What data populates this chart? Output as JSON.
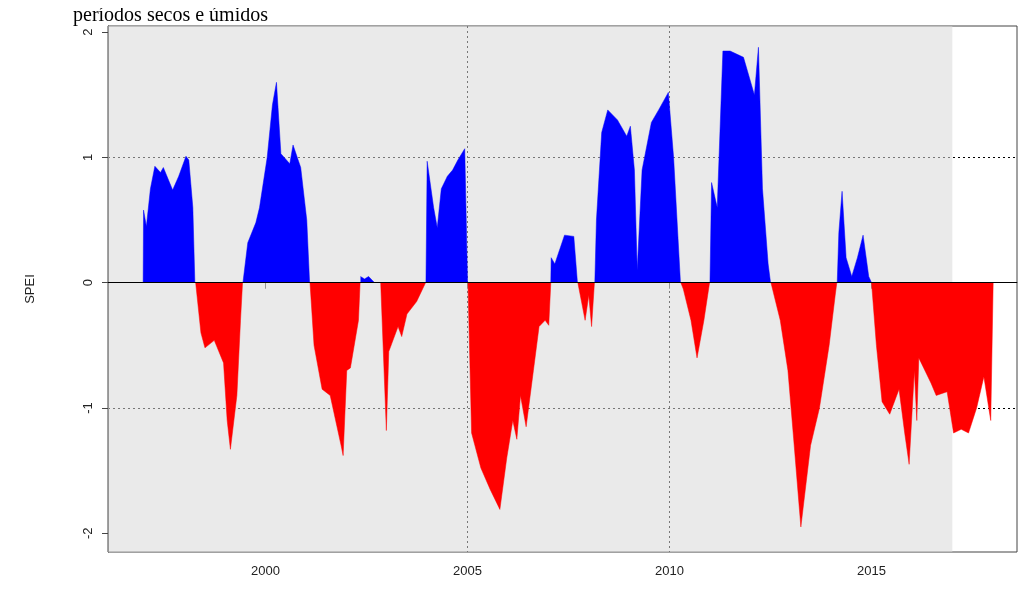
{
  "chart_data": {
    "type": "area",
    "title": "períodos secos e úmidos",
    "ylabel": "SPEI",
    "xlim": [
      1996.1,
      2018.6
    ],
    "ylim": [
      -2.15,
      2.05
    ],
    "xticks": [
      2000,
      2005,
      2010,
      2015
    ],
    "yticks": [
      -2,
      -1,
      0,
      1,
      2
    ],
    "grid": true,
    "bands": [
      {
        "axis": "x",
        "from": 1996.1,
        "to": 2017,
        "color": "#d9d9d9"
      }
    ],
    "ref_lines": [
      {
        "axis": "y",
        "value": 0,
        "color": "#000000"
      }
    ],
    "series": [
      {
        "color": "#0000ff",
        "x": [
          1996.97,
          1996.98,
          1997.05,
          1997.15,
          1997.26,
          1997.4,
          1997.47,
          1997.7,
          1997.85,
          1998.03,
          1998.1,
          1998.2,
          1998.25,
          1998.26,
          1999.44,
          1999.56,
          1999.76,
          1999.85,
          2000.04,
          2000.17,
          2000.27,
          2000.38,
          2000.6,
          2000.68,
          2000.87,
          2001.02,
          2001.09,
          2001.1,
          2002.35,
          2002.45,
          2002.55,
          2002.7,
          2002.71,
          2003.97,
          2004.0,
          2004.16,
          2004.25,
          2004.35,
          2004.5,
          2004.63,
          2004.76,
          2004.93,
          2005.0,
          2005.01,
          2007.06,
          2007.07,
          2007.16,
          2007.4,
          2007.63,
          2007.72,
          2007.73,
          2008.15,
          2008.19,
          2008.32,
          2008.47,
          2008.71,
          2008.94,
          2009.03,
          2009.13,
          2009.2,
          2009.32,
          2009.55,
          2009.73,
          2009.97,
          2010.1,
          2010.27,
          2010.28,
          2011.0,
          2011.04,
          2011.18,
          2011.32,
          2011.5,
          2011.83,
          2012.1,
          2012.2,
          2012.3,
          2012.44,
          2012.5,
          2012.51,
          2014.15,
          2014.19,
          2014.27,
          2014.37,
          2014.51,
          2014.65,
          2014.79,
          2014.93,
          2015.0
        ],
        "values": [
          0,
          0.58,
          0.45,
          0.75,
          0.93,
          0.88,
          0.92,
          0.74,
          0.85,
          1.01,
          0.98,
          0.6,
          0,
          null,
          0,
          0.32,
          0.48,
          0.6,
          1.0,
          1.42,
          1.6,
          1.03,
          0.95,
          1.1,
          0.92,
          0.5,
          0,
          null,
          0.05,
          0.03,
          0.05,
          0,
          null,
          0,
          0.97,
          0.6,
          0.44,
          0.75,
          0.85,
          0.9,
          0.98,
          1.07,
          0,
          null,
          0,
          0.2,
          0.15,
          0.38,
          0.37,
          0,
          null,
          0,
          0.5,
          1.2,
          1.38,
          1.3,
          1.17,
          1.25,
          0.9,
          0.1,
          0.9,
          1.28,
          1.38,
          1.52,
          1.0,
          0,
          null,
          0,
          0.8,
          0.6,
          1.85,
          1.85,
          1.8,
          1.5,
          1.88,
          0.75,
          0.15,
          0,
          null,
          0,
          0.4,
          0.73,
          0.2,
          0.05,
          0.2,
          0.38,
          0.05,
          0
        ]
      },
      {
        "color": "#ff0000",
        "x": [
          1998.27,
          1998.4,
          1998.5,
          1998.73,
          1998.96,
          1999.05,
          1999.13,
          1999.29,
          1999.38,
          1999.43,
          1999.44,
          2001.1,
          2001.2,
          2001.4,
          2001.6,
          2001.87,
          2001.92,
          2002.01,
          2002.1,
          2002.3,
          2002.34,
          2002.35,
          2002.85,
          2002.99,
          2003.05,
          2003.28,
          2003.37,
          2003.5,
          2003.74,
          2003.96,
          2003.97,
          2005.01,
          2005.1,
          2005.33,
          2005.56,
          2005.8,
          2005.97,
          2006.12,
          2006.22,
          2006.31,
          2006.45,
          2006.63,
          2006.77,
          2006.92,
          2007.01,
          2007.06,
          2007.07,
          2007.73,
          2007.91,
          2008.0,
          2008.07,
          2008.14,
          2008.15,
          2010.28,
          2010.34,
          2010.53,
          2010.68,
          2010.85,
          2010.99,
          2011.0,
          2012.51,
          2012.74,
          2012.93,
          2013.07,
          2013.25,
          2013.49,
          2013.71,
          2013.95,
          2014.1,
          2014.14,
          2014.15,
          2015.0,
          2015.12,
          2015.26,
          2015.45,
          2015.68,
          2015.82,
          2015.93,
          2016.06,
          2016.12,
          2016.17,
          2016.47,
          2016.6,
          2016.87,
          2017.03,
          2017.22,
          2017.4,
          2017.6,
          2017.78,
          2017.95,
          2018.01
        ],
        "values": [
          0,
          -0.4,
          -0.52,
          -0.46,
          -0.64,
          -1.1,
          -1.33,
          -0.9,
          -0.3,
          0,
          null,
          0,
          -0.5,
          -0.85,
          -0.9,
          -1.3,
          -1.38,
          -0.7,
          -0.68,
          -0.3,
          0,
          null,
          0,
          -1.18,
          -0.55,
          -0.35,
          -0.43,
          -0.25,
          -0.15,
          0,
          null,
          0,
          -1.2,
          -1.48,
          -1.65,
          -1.81,
          -1.4,
          -1.1,
          -1.25,
          -0.9,
          -1.15,
          -0.7,
          -0.35,
          -0.3,
          -0.34,
          0,
          null,
          0,
          -0.3,
          -0.1,
          -0.35,
          0,
          null,
          0,
          -0.05,
          -0.3,
          -0.6,
          -0.3,
          0,
          null,
          0,
          -0.3,
          -0.7,
          -1.24,
          -1.95,
          -1.3,
          -1.0,
          -0.5,
          -0.1,
          0,
          null,
          0,
          -0.5,
          -0.95,
          -1.05,
          -0.85,
          -1.2,
          -1.45,
          -0.7,
          -1.1,
          -0.6,
          -0.8,
          -0.9,
          -0.87,
          -1.2,
          -1.17,
          -1.2,
          -1.0,
          -0.75,
          -1.1,
          0
        ]
      }
    ]
  }
}
